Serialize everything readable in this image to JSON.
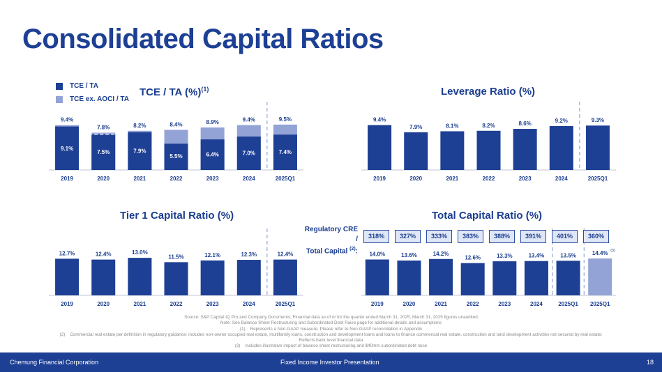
{
  "page": {
    "title": "Consolidated Capital Ratios",
    "company": "Chemung Financial Corporation",
    "presentation": "Fixed Income Investor Presentation",
    "page_number": "18"
  },
  "legend": [
    {
      "label": "TCE / TA",
      "color": "#1d3f94"
    },
    {
      "label": "TCE ex. AOCI / TA",
      "color": "#93a3d6"
    }
  ],
  "colors": {
    "primary": "#1d3f94",
    "light": "#93a3d6"
  },
  "regulatory": {
    "label_line1": "Regulatory CRE /",
    "label_line2": "Total Capital",
    "label_note": "(2)",
    "label_colon": ":",
    "values": [
      "318%",
      "327%",
      "333%",
      "383%",
      "388%",
      "391%",
      "401%",
      "360%"
    ]
  },
  "footnotes": {
    "source": "Source: S&P Capital IQ Pro and Company Documents; Financial data as of or for the quarter ended March 31, 2025; March 31, 2025 figures unaudited",
    "note": "Note: See Balance Sheet Restructuring and Subordinated Debt Raise page for additional details and assumptions",
    "f1_num": "(1)",
    "f1": "Represents a Non-GAAP measure; Please refer to Non-GAAP reconciliation in Appendix",
    "f2_num": "(2)",
    "f2": "Commercial real estate per definition in regulatory guidance: includes non-owner occupied real estate, multifamily loans, construction and development loans and loans to finance commercial real estate, construction and land development activities not secured by real estate;",
    "f2b": "Reflects bank level financial data",
    "f3_num": "(3)",
    "f3": "Includes illustrative impact of balance sheet restructuring and $40mm subordinated debt raise"
  },
  "chart_data": [
    {
      "type": "bar",
      "title": "TCE / TA (%)",
      "title_note": "(1)",
      "categories": [
        "2019",
        "2020",
        "2021",
        "2022",
        "2023",
        "2024",
        "2025Q1"
      ],
      "series": [
        {
          "name": "TCE / TA",
          "values": [
            9.1,
            7.5,
            7.9,
            5.5,
            6.4,
            7.0,
            7.4
          ],
          "labels": [
            "9.1%",
            "7.5%",
            "7.9%",
            "5.5%",
            "6.4%",
            "7.0%",
            "7.4%"
          ]
        },
        {
          "name": "TCE ex. AOCI / TA",
          "values": [
            9.4,
            7.8,
            8.2,
            8.4,
            8.9,
            9.4,
            9.5
          ],
          "labels": [
            "9.4%",
            "7.8%",
            "8.2%",
            "8.4%",
            "8.9%",
            "9.4%",
            "9.5%"
          ]
        }
      ],
      "ylim": [
        0,
        10.5
      ]
    },
    {
      "type": "bar",
      "title": "Leverage Ratio (%)",
      "categories": [
        "2019",
        "2020",
        "2021",
        "2022",
        "2023",
        "2024",
        "2025Q1"
      ],
      "values": [
        9.4,
        7.9,
        8.1,
        8.2,
        8.6,
        9.2,
        9.3
      ],
      "labels": [
        "9.4%",
        "7.9%",
        "8.1%",
        "8.2%",
        "8.6%",
        "9.2%",
        "9.3%"
      ],
      "ylim": [
        0,
        10.5
      ]
    },
    {
      "type": "bar",
      "title": "Tier 1 Capital Ratio (%)",
      "categories": [
        "2019",
        "2020",
        "2021",
        "2022",
        "2023",
        "2024",
        "2025Q1"
      ],
      "values": [
        12.7,
        12.4,
        13.0,
        11.5,
        12.1,
        12.3,
        12.4
      ],
      "labels": [
        "12.7%",
        "12.4%",
        "13.0%",
        "11.5%",
        "12.1%",
        "12.3%",
        "12.4%"
      ],
      "ylim": [
        0,
        14
      ]
    },
    {
      "type": "bar",
      "title": "Total Capital Ratio (%)",
      "categories": [
        "2019",
        "2020",
        "2021",
        "2022",
        "2023",
        "2024",
        "2025Q1",
        "2025Q1"
      ],
      "values": [
        14.0,
        13.6,
        14.2,
        12.6,
        13.3,
        13.4,
        13.5,
        14.4
      ],
      "labels": [
        "14.0%",
        "13.6%",
        "14.2%",
        "12.6%",
        "13.3%",
        "13.4%",
        "13.5%",
        "14.4%"
      ],
      "last_note": "(3)",
      "ylim": [
        0,
        15.5
      ]
    }
  ]
}
